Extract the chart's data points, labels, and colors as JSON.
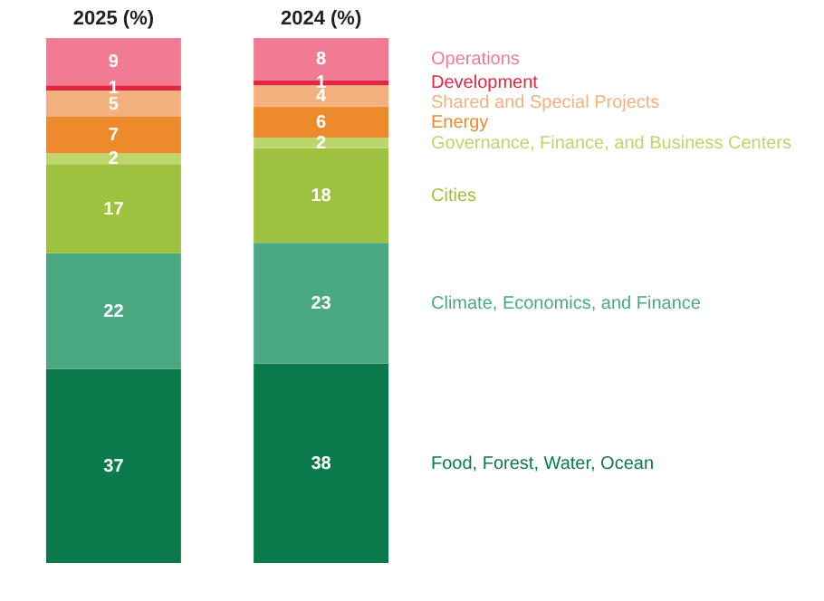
{
  "chart_data": {
    "type": "bar",
    "stacked": true,
    "data_labels": true,
    "categories": [
      "2025 (%)",
      "2024 (%)"
    ],
    "series": [
      {
        "name": "Food, Forest, Water, Ocean",
        "color": "#0a7a4c",
        "values": [
          37,
          38
        ]
      },
      {
        "name": "Climate, Economics, and Finance",
        "color": "#4aa882",
        "values": [
          22,
          23
        ]
      },
      {
        "name": "Cities",
        "color": "#9ec23f",
        "values": [
          17,
          18
        ]
      },
      {
        "name": "Governance, Finance, and Business Centers",
        "color": "#bcd66c",
        "values": [
          2,
          2
        ]
      },
      {
        "name": "Energy",
        "color": "#ed8a2b",
        "values": [
          7,
          6
        ]
      },
      {
        "name": "Shared and Special Projects",
        "color": "#f3b17f",
        "values": [
          5,
          4
        ]
      },
      {
        "name": "Development",
        "color": "#e3263f",
        "values": [
          1,
          1
        ]
      },
      {
        "name": "Operations",
        "color": "#f07b92",
        "values": [
          9,
          8
        ]
      }
    ]
  }
}
